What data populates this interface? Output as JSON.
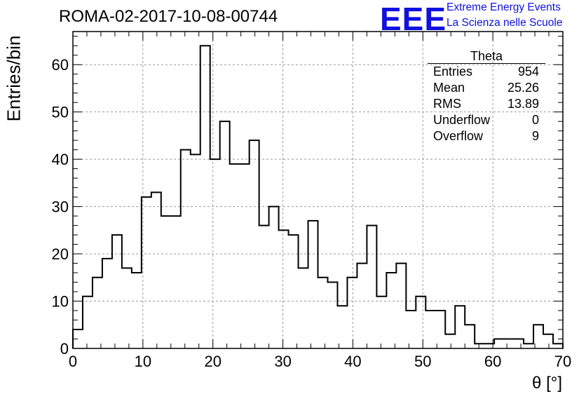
{
  "chart_data": {
    "type": "bar",
    "title": "ROMA-02-2017-10-08-00744",
    "xlabel": "θ [°]",
    "ylabel": "Entries/bin",
    "xlim": [
      0,
      70
    ],
    "ylim": [
      0,
      67
    ],
    "grid": true,
    "bin_width": 1.4,
    "bin_edges_start": 0,
    "x_ticks": [
      "0",
      "10",
      "20",
      "30",
      "40",
      "50",
      "60",
      "70"
    ],
    "y_ticks": [
      "0",
      "10",
      "20",
      "30",
      "40",
      "50",
      "60"
    ],
    "values": [
      4,
      11,
      15,
      19,
      24,
      17,
      16,
      32,
      33,
      28,
      28,
      42,
      41,
      64,
      40,
      48,
      39,
      39,
      44,
      26,
      30,
      25,
      24,
      17,
      27,
      15,
      14,
      9,
      15,
      18,
      26,
      11,
      16,
      18,
      8,
      11,
      8,
      8,
      3,
      9,
      5,
      1,
      1,
      2,
      2,
      2,
      1,
      5,
      3,
      1
    ]
  },
  "stats_box": {
    "title": "Theta",
    "rows": [
      {
        "label": "Entries",
        "value": "954"
      },
      {
        "label": "Mean",
        "value": "25.26"
      },
      {
        "label": "RMS",
        "value": "13.89"
      },
      {
        "label": "Underflow",
        "value": "0"
      },
      {
        "label": "Overflow",
        "value": "9"
      }
    ]
  },
  "logo": {
    "word": "EEE",
    "line1": "Extreme Energy Events",
    "line2": "La Scienza nelle Scuole",
    "color": "#1010e0"
  }
}
